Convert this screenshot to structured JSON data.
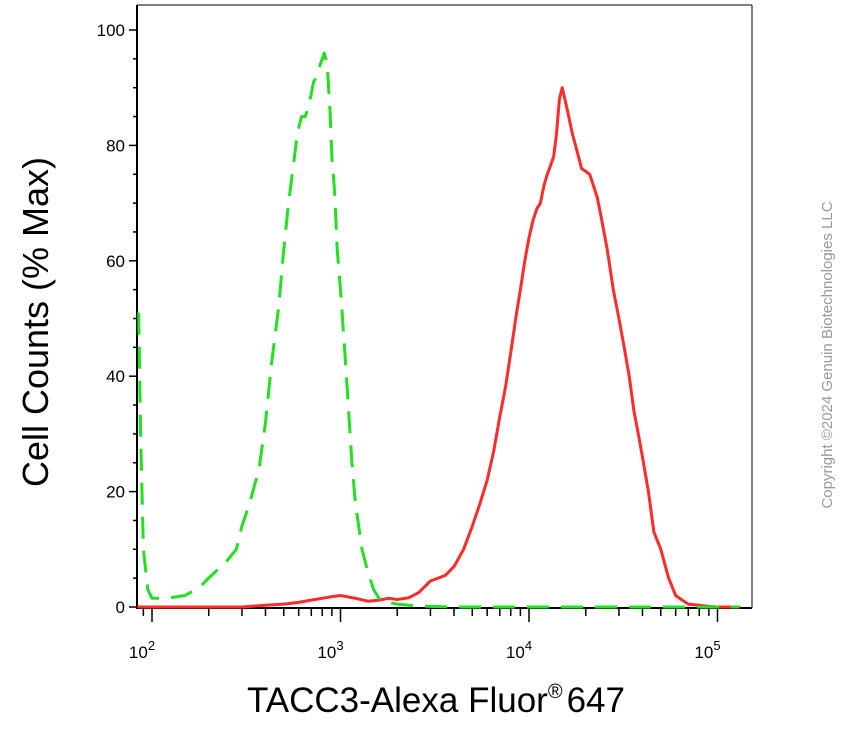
{
  "chart_data": {
    "type": "line",
    "xlabel": "TACC3-Alexa Fluor",
    "xlabel_superscript": "®",
    "xlabel_suffix": "647",
    "ylabel": "Cell Counts (% Max)",
    "x_scale": "log",
    "xlim": [
      85,
      130000
    ],
    "ylim": [
      0,
      105
    ],
    "x_tick_labels": [
      {
        "base": "10",
        "exp": "2",
        "value": 100
      },
      {
        "base": "10",
        "exp": "3",
        "value": 1000
      },
      {
        "base": "10",
        "exp": "4",
        "value": 10000
      },
      {
        "base": "10",
        "exp": "5",
        "value": 100000
      }
    ],
    "y_ticks": [
      0,
      20,
      40,
      60,
      80,
      100
    ],
    "y_tick_labels": [
      "0",
      "20",
      "40",
      "60",
      "80",
      "100"
    ],
    "grid": false,
    "series": [
      {
        "color": "#ff2a2a",
        "dash": "solid",
        "x": [
          85,
          150,
          300,
          400,
          500,
          600,
          700,
          800,
          900,
          1000,
          1200,
          1400,
          1600,
          1800,
          2000,
          2300,
          2600,
          3000,
          3300,
          3600,
          4000,
          4500,
          5000,
          5500,
          6000,
          6500,
          7000,
          7500,
          8000,
          8500,
          9000,
          9500,
          10000,
          10500,
          11000,
          11500,
          12000,
          12500,
          13000,
          13500,
          14000,
          14500,
          15000,
          15500,
          16000,
          17000,
          18000,
          19000,
          20000,
          21000,
          22000,
          23000,
          24000,
          26000,
          28000,
          30000,
          32000,
          34000,
          36000,
          38000,
          40000,
          43000,
          46000,
          50000,
          55000,
          60000,
          65000,
          70000,
          80000,
          90000,
          100000,
          130000
        ],
        "y": [
          0,
          0,
          0,
          0.3,
          0.5,
          0.8,
          1.2,
          1.5,
          1.8,
          2,
          1.5,
          1,
          1.2,
          1.5,
          1.3,
          1.6,
          2.5,
          4.5,
          5,
          5.5,
          7,
          10,
          14,
          18,
          22,
          27,
          33,
          38,
          44,
          50,
          55,
          60,
          64,
          67,
          69,
          70,
          73,
          75,
          76.5,
          78,
          82,
          88,
          90,
          88,
          86,
          82,
          79,
          76,
          75.5,
          75,
          73,
          71,
          68,
          62,
          55,
          50,
          45,
          40,
          34,
          30,
          26,
          20,
          13,
          10,
          5,
          2,
          1.2,
          0.5,
          0.3,
          0.1,
          0,
          0
        ]
      },
      {
        "color": "#22e022",
        "dash": "dashed",
        "x": [
          85,
          87,
          90,
          95,
          100,
          120,
          150,
          180,
          200,
          250,
          280,
          300,
          330,
          370,
          400,
          430,
          470,
          500,
          530,
          560,
          590,
          620,
          650,
          680,
          700,
          720,
          750,
          780,
          800,
          820,
          850,
          880,
          900,
          930,
          960,
          1000,
          1050,
          1100,
          1150,
          1200,
          1300,
          1400,
          1500,
          1600,
          1800,
          2000,
          2300,
          2600,
          3000,
          4000,
          6000,
          10000,
          20000,
          50000,
          130000
        ],
        "y": [
          51,
          30,
          10,
          3,
          1.5,
          1.5,
          2,
          3.5,
          5,
          8,
          10,
          14,
          18,
          24,
          32,
          42,
          52,
          62,
          70,
          76,
          82,
          85,
          85,
          87,
          89,
          91,
          92,
          94,
          95,
          96,
          94,
          86,
          78,
          72,
          62,
          55,
          45,
          35,
          25,
          18,
          10,
          6,
          3,
          1.5,
          0.8,
          0.5,
          0.3,
          0.2,
          0.1,
          0,
          0,
          0,
          0,
          0,
          0
        ]
      }
    ]
  },
  "watermark": {
    "copyright": "Copyright ©2024 Genuin Biotechnologies LLC"
  }
}
